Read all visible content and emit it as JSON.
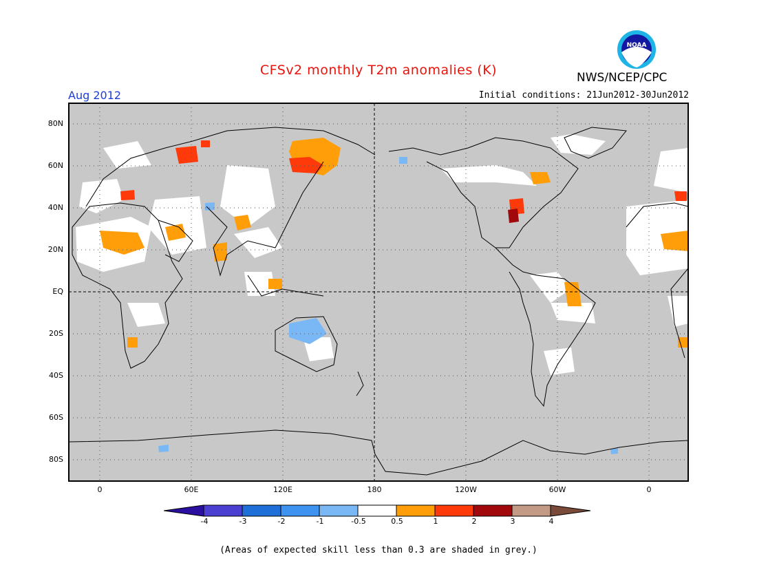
{
  "title": "CFSv2 monthly T2m anomalies (K)",
  "agency": "NWS/NCEP/CPC",
  "logo_text": "NOAA",
  "target_month": "Aug 2012",
  "initial_conditions": "Initial conditions: 21Jun2012-30Jun2012",
  "footnote": "(Areas of expected skill less than 0.3 are shaded in grey.)",
  "map": {
    "lat_labels": [
      "80N",
      "60N",
      "40N",
      "20N",
      "EQ",
      "20S",
      "40S",
      "60S",
      "80S"
    ],
    "lon_labels": [
      "0",
      "60E",
      "120E",
      "180",
      "120W",
      "60W",
      "0"
    ],
    "background_grey": "#c8c8c8",
    "gridlines": "dotted"
  },
  "colorbar": {
    "labels": [
      "-4",
      "-3",
      "-2",
      "-1",
      "-0.5",
      "0.5",
      "1",
      "2",
      "3",
      "4"
    ],
    "colors": [
      "#2a0fa0",
      "#4a3fd0",
      "#1e6fd8",
      "#3e92f0",
      "#7ab8f5",
      "#ffffff",
      "#ff9e08",
      "#ff3a0a",
      "#a0080c",
      "#c39a86",
      "#7a4a3a"
    ]
  },
  "anomaly_regions": [
    {
      "region": "Europe",
      "level": "1"
    },
    {
      "region": "Sahara",
      "level": "0.5"
    },
    {
      "region": "Siberia",
      "level": "1"
    },
    {
      "region": "Central US",
      "level": "2"
    },
    {
      "region": "Australia",
      "level": "-1"
    },
    {
      "region": "Brazil",
      "level": "0.5"
    }
  ]
}
